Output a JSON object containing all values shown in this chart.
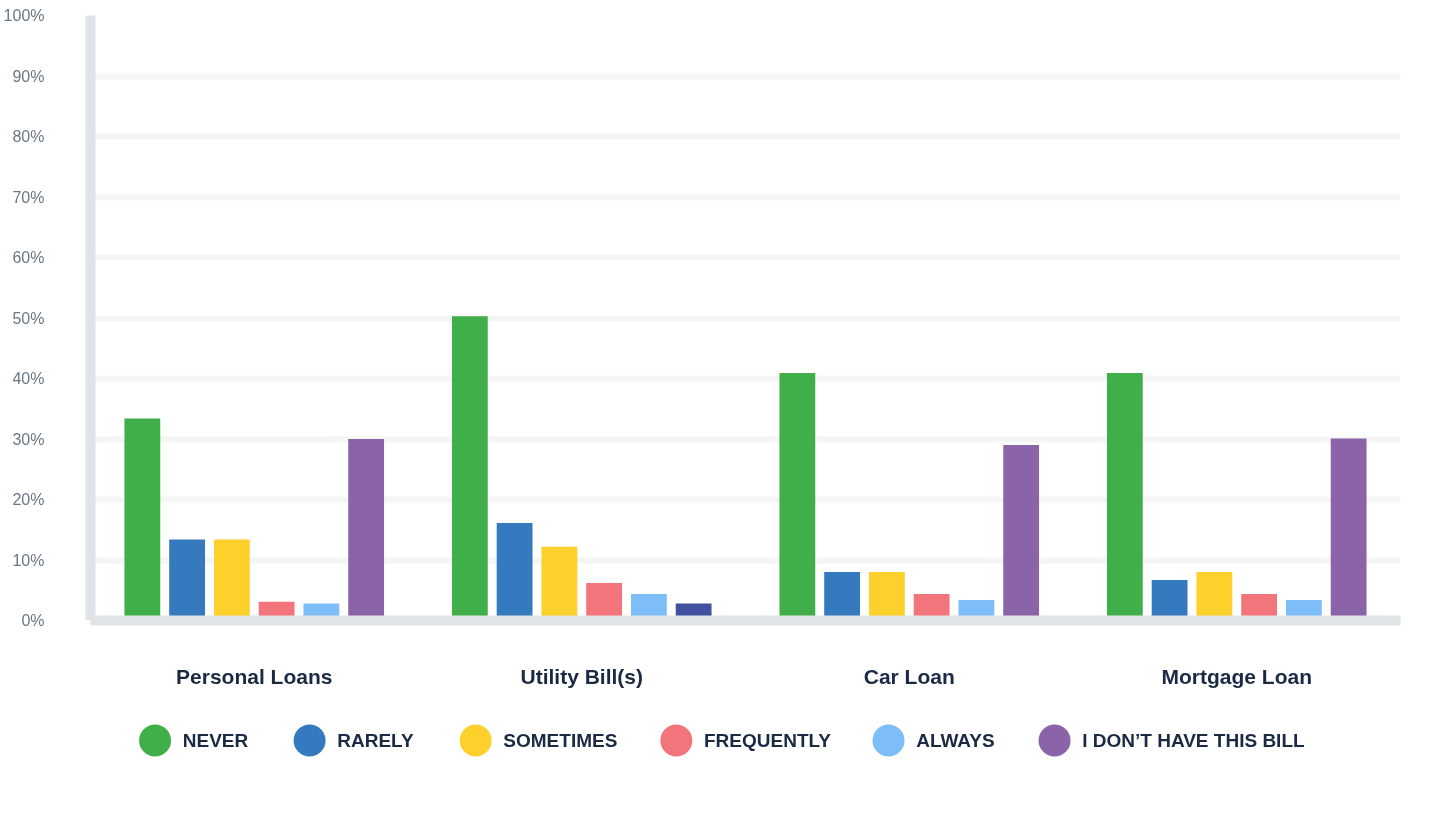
{
  "chart_data": {
    "type": "bar",
    "categories": [
      "Personal Loans",
      "Utility Bill(s)",
      "Car Loan",
      "Mortgage Loan"
    ],
    "series": [
      {
        "name": "NEVER",
        "color": "#40ae49",
        "values": [
          33.4,
          50.3,
          40.9,
          40.9
        ]
      },
      {
        "name": "RARELY",
        "color": "#3579be",
        "values": [
          13.4,
          16.1,
          8.0,
          6.7
        ]
      },
      {
        "name": "SOMETIMES",
        "color": "#fdd02b",
        "values": [
          13.4,
          12.2,
          8.0,
          8.0
        ]
      },
      {
        "name": "FREQUENTLY",
        "color": "#f2757b",
        "values": [
          3.1,
          6.2,
          4.4,
          4.4
        ]
      },
      {
        "name": "ALWAYS",
        "color": "#7dbef8",
        "values": [
          2.8,
          4.4,
          3.4,
          3.4
        ]
      },
      {
        "name": "I DON’T HAVE THIS BILL",
        "color": "#8a63a8",
        "colors": [
          "#8a63a8",
          "#4150a0",
          "#8a63a8",
          "#8a63a8"
        ],
        "values": [
          30.0,
          2.8,
          29.0,
          30.1
        ]
      }
    ],
    "ylim": [
      0,
      100
    ],
    "yticks": [
      {
        "value": 0,
        "label": "0%"
      },
      {
        "value": 10,
        "label": "10%"
      },
      {
        "value": 20,
        "label": "20%"
      },
      {
        "value": 30,
        "label": "30%"
      },
      {
        "value": 40,
        "label": "40%"
      },
      {
        "value": 50,
        "label": "50%"
      },
      {
        "value": 60,
        "label": "60%"
      },
      {
        "value": 70,
        "label": "70%"
      },
      {
        "value": 80,
        "label": "80%"
      },
      {
        "value": 90,
        "label": "90%"
      },
      {
        "value": 100,
        "label": "100%"
      }
    ],
    "grid": "y",
    "legend": "bottom"
  }
}
